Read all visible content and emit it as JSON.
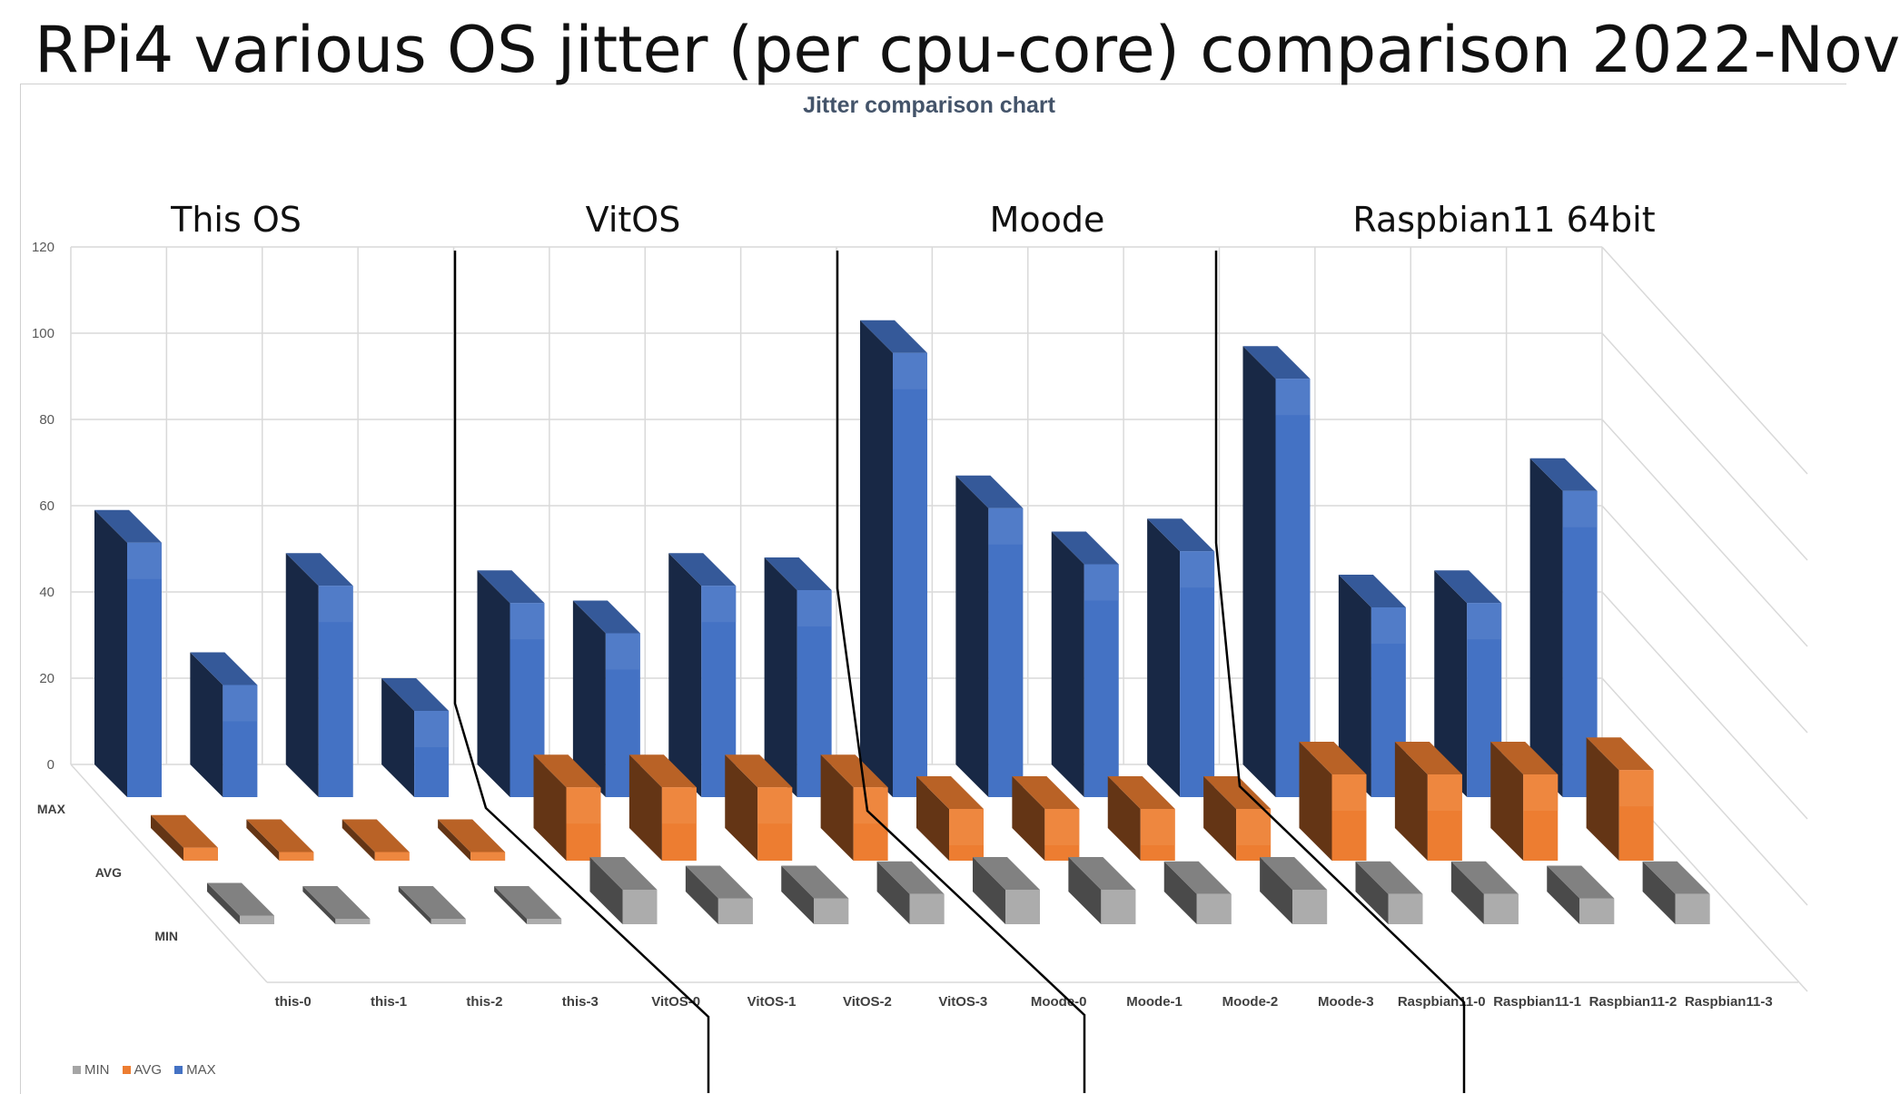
{
  "page_title": "RPi4 various OS jitter (per cpu-core) comparison 2022-Nov",
  "group_titles": [
    "This OS",
    "VitOS",
    "Moode",
    "Raspbian11 64bit"
  ],
  "colors": {
    "MAX": "#4472c4",
    "AVG": "#ed7d31",
    "MIN": "#a5a5a5",
    "grid": "#d9d9d9"
  },
  "chart_data": {
    "type": "bar",
    "title": "Jitter comparison chart",
    "categories": [
      "this-0",
      "this-1",
      "this-2",
      "this-3",
      "VitOS-0",
      "VitOS-1",
      "VitOS-2",
      "VitOS-3",
      "Moode-0",
      "Moode-1",
      "Moode-2",
      "Moode-3",
      "Raspbian11-0",
      "Raspbian11-1",
      "Raspbian11-2",
      "Raspbian11-3"
    ],
    "series": [
      {
        "name": "MIN",
        "values": [
          2,
          1,
          1,
          1,
          8,
          6,
          6,
          7,
          8,
          8,
          7,
          8,
          7,
          7,
          6,
          7
        ]
      },
      {
        "name": "AVG",
        "values": [
          3,
          2,
          2,
          2,
          17,
          17,
          17,
          17,
          12,
          12,
          12,
          12,
          20,
          20,
          20,
          21
        ]
      },
      {
        "name": "MAX",
        "values": [
          59,
          26,
          49,
          20,
          45,
          38,
          49,
          48,
          103,
          67,
          54,
          57,
          97,
          44,
          45,
          71
        ]
      }
    ],
    "ylim": [
      0,
      120
    ],
    "yticks": [
      "0",
      "20",
      "40",
      "60",
      "80",
      "100",
      "120"
    ],
    "legend": [
      "MIN",
      "AVG",
      "MAX"
    ],
    "legend_position": "bottom-left"
  }
}
